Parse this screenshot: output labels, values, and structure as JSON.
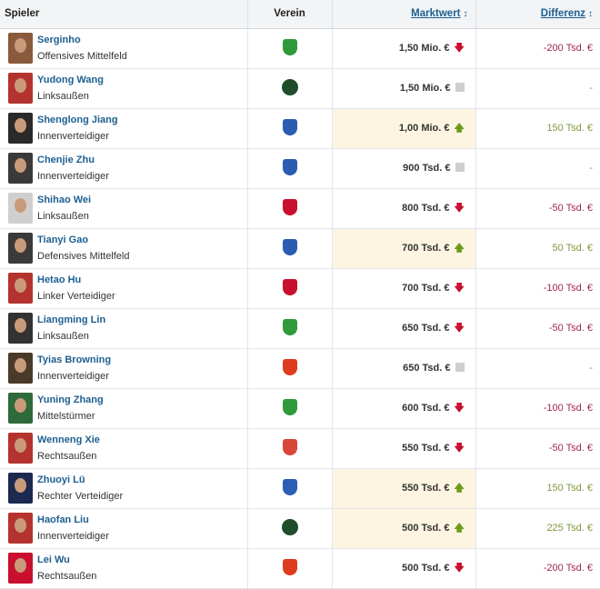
{
  "header": {
    "player": "Spieler",
    "club": "Verein",
    "market_value": "Marktwert",
    "difference": "Differenz",
    "sort_icon": "sort-icon"
  },
  "rows": [
    {
      "name": "Serginho",
      "position": "Offensives Mittelfeld",
      "club_color": "#2e9a3a",
      "value": "1,50 Mio. €",
      "trend": "down",
      "diff": "-200 Tsd. €"
    },
    {
      "name": "Yudong Wang",
      "position": "Linksaußen",
      "club_color": "#1e4d2b",
      "value": "1,50 Mio. €",
      "trend": "same",
      "diff": "-"
    },
    {
      "name": "Shenglong Jiang",
      "position": "Innenverteidiger",
      "club_color": "#2a5db0",
      "value": "1,00 Mio. €",
      "trend": "up",
      "diff": "150 Tsd. €"
    },
    {
      "name": "Chenjie Zhu",
      "position": "Innenverteidiger",
      "club_color": "#2a5db0",
      "value": "900 Tsd. €",
      "trend": "same",
      "diff": "-"
    },
    {
      "name": "Shihao Wei",
      "position": "Linksaußen",
      "club_color": "#c8102e",
      "value": "800 Tsd. €",
      "trend": "down",
      "diff": "-50 Tsd. €"
    },
    {
      "name": "Tianyi Gao",
      "position": "Defensives Mittelfeld",
      "club_color": "#2a5db0",
      "value": "700 Tsd. €",
      "trend": "up",
      "diff": "50 Tsd. €"
    },
    {
      "name": "Hetao Hu",
      "position": "Linker Verteidiger",
      "club_color": "#c8102e",
      "value": "700 Tsd. €",
      "trend": "down",
      "diff": "-100 Tsd. €"
    },
    {
      "name": "Liangming Lin",
      "position": "Linksaußen",
      "club_color": "#2e9a3a",
      "value": "650 Tsd. €",
      "trend": "down",
      "diff": "-50 Tsd. €"
    },
    {
      "name": "Tyias Browning",
      "position": "Innenverteidiger",
      "club_color": "#e03a1e",
      "value": "650 Tsd. €",
      "trend": "same",
      "diff": "-"
    },
    {
      "name": "Yuning Zhang",
      "position": "Mittelstürmer",
      "club_color": "#2e9a3a",
      "value": "600 Tsd. €",
      "trend": "down",
      "diff": "-100 Tsd. €"
    },
    {
      "name": "Wenneng Xie",
      "position": "Rechtsaußen",
      "club_color": "#d8473a",
      "value": "550 Tsd. €",
      "trend": "down",
      "diff": "-50 Tsd. €"
    },
    {
      "name": "Zhuoyi Lü",
      "position": "Rechter Verteidiger",
      "club_color": "#2b5fb3",
      "value": "550 Tsd. €",
      "trend": "up",
      "diff": "150 Tsd. €"
    },
    {
      "name": "Haofan Liu",
      "position": "Innenverteidiger",
      "club_color": "#1e4d2b",
      "value": "500 Tsd. €",
      "trend": "up",
      "diff": "225 Tsd. €"
    },
    {
      "name": "Lei Wu",
      "position": "Rechtsaußen",
      "club_color": "#e03a1e",
      "value": "500 Tsd. €",
      "trend": "down",
      "diff": "-200 Tsd. €"
    }
  ]
}
